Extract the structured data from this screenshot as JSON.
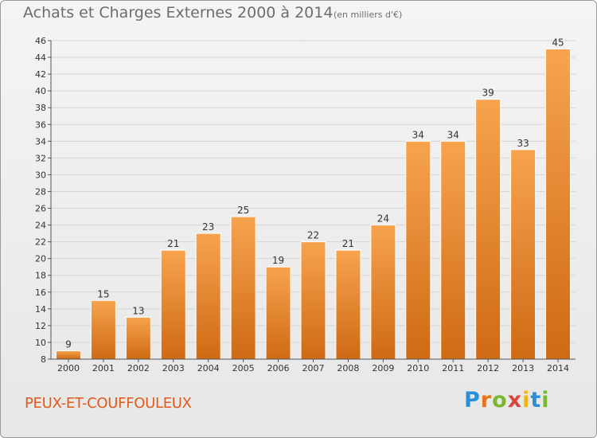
{
  "header": {
    "title": "Achats et Charges Externes 2000 à 2014",
    "unit": "(en milliers d'€)"
  },
  "footer": {
    "commune": "PEUX-ET-COUFFOULEUX",
    "logo_text": "Proxiti",
    "logo_colors": [
      "#2a8fd6",
      "#e8731f",
      "#7cb82f",
      "#d9473a",
      "#f2b21b",
      "#2a8fd6",
      "#7cb82f"
    ]
  },
  "colors": {
    "bar_light": "#f7a34e",
    "bar_dark": "#cf6a14",
    "grid": "#d4d4d4",
    "axis_text": "#333333",
    "value_text": "#333333",
    "commune": "#e05a1c"
  },
  "chart_data": {
    "type": "bar",
    "title": "Achats et Charges Externes 2000 à 2014",
    "subtitle": "(en milliers d'€)",
    "categories": [
      "2000",
      "2001",
      "2002",
      "2003",
      "2004",
      "2005",
      "2006",
      "2007",
      "2008",
      "2009",
      "2010",
      "2011",
      "2012",
      "2013",
      "2014"
    ],
    "values": [
      9,
      15,
      13,
      21,
      23,
      25,
      19,
      22,
      21,
      24,
      34,
      34,
      39,
      33,
      45
    ],
    "xlabel": "",
    "ylabel": "",
    "ylim": [
      8,
      46
    ],
    "yticks": [
      8,
      10,
      12,
      14,
      16,
      18,
      20,
      22,
      24,
      26,
      28,
      30,
      32,
      34,
      36,
      38,
      40,
      42,
      44,
      46
    ],
    "grid": true,
    "legend": "none"
  }
}
